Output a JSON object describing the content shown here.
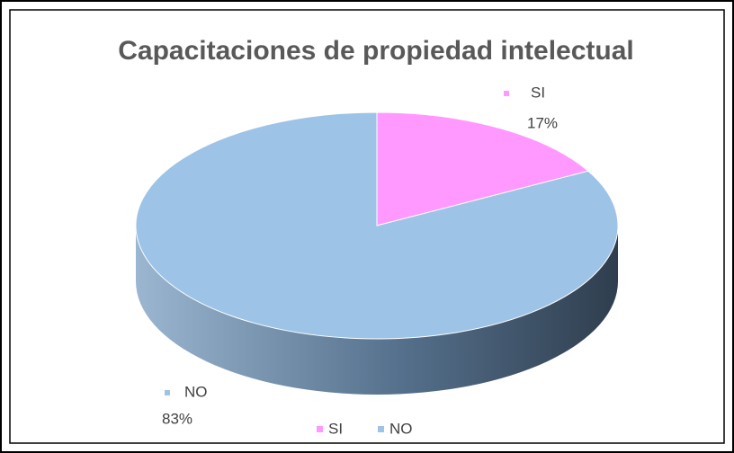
{
  "chart_data": {
    "type": "pie",
    "title": "Capacitaciones de propiedad intelectual",
    "categories": [
      "SI",
      "NO"
    ],
    "values": [
      17,
      83
    ],
    "value_labels": [
      "17%",
      "83%"
    ],
    "colors": [
      "#ff99ff",
      "#9dc3e6"
    ],
    "legend": "bottom"
  }
}
